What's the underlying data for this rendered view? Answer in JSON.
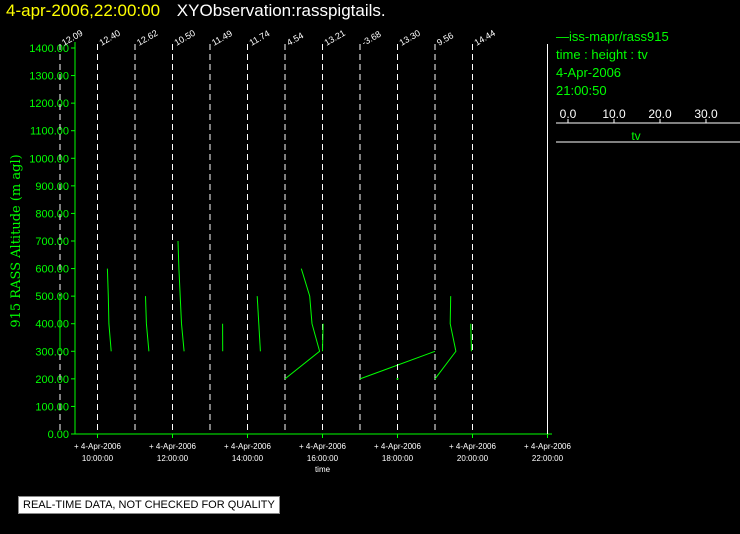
{
  "header": {
    "datetime": "4-apr-2006,22:00:00",
    "observation": "XYObservation:rasspigtails."
  },
  "legend": {
    "line1": "—iss-mapr/rass915",
    "line2": "time : height : tv",
    "line3": "4-Apr-2006",
    "line4": "21:00:50",
    "scale_ticks": [
      "0.0",
      "10.0",
      "20.0",
      "30.0"
    ],
    "scale_label": "tv"
  },
  "footer": {
    "quality_note": "REAL-TIME DATA, NOT CHECKED FOR QUALITY"
  },
  "colors": {
    "data": "#00ff00",
    "axis": "#00ff00",
    "background": "#000000",
    "title_date": "#ffff00"
  },
  "chart_data": {
    "type": "line",
    "ylabel": "915 RASS Altitude (m agl)",
    "xlabel": "time",
    "ylim": [
      0,
      1400
    ],
    "xlim": [
      9,
      22.4
    ],
    "yticks": [
      "0.00",
      "100.00",
      "200.00",
      "300.00",
      "400.00",
      "500.00",
      "600.00",
      "700.00",
      "800.00",
      "900.00",
      "1000.00",
      "1100.00",
      "1200.00",
      "1300.00",
      "1400.00"
    ],
    "xticks": [
      {
        "x": 10,
        "date": "4-Apr-2006",
        "time": "10:00:00"
      },
      {
        "x": 12,
        "date": "4-Apr-2006",
        "time": "12:00:00"
      },
      {
        "x": 14,
        "date": "4-Apr-2006",
        "time": "14:00:00"
      },
      {
        "x": 16,
        "date": "4-Apr-2006",
        "time": "16:00:00"
      },
      {
        "x": 18,
        "date": "4-Apr-2006",
        "time": "18:00:00"
      },
      {
        "x": 20,
        "date": "4-Apr-2006",
        "time": "20:00:00"
      },
      {
        "x": 22,
        "date": "4-Apr-2006",
        "time": "22:00:00"
      }
    ],
    "profiles": [
      {
        "time": 9,
        "label": "12.09",
        "tv_scale": 0.0294,
        "points": [
          [
            0,
            300
          ],
          [
            0,
            400
          ],
          [
            0,
            500
          ]
        ]
      },
      {
        "time": 10,
        "label": "12.40",
        "tv_scale": 0.0294,
        "points": [
          [
            12.4,
            300
          ],
          [
            10.3,
            400
          ],
          [
            9.8,
            500
          ],
          [
            9.0,
            600
          ]
        ]
      },
      {
        "time": 11,
        "label": "12.62",
        "tv_scale": 0.0294,
        "points": [
          [
            12.62,
            300
          ],
          [
            10.3,
            400
          ],
          [
            9.5,
            500
          ]
        ]
      },
      {
        "time": 12,
        "label": "10.50",
        "tv_scale": 0.0294,
        "points": [
          [
            10.5,
            300
          ],
          [
            8.2,
            400
          ],
          [
            5.8,
            600
          ],
          [
            5.0,
            700
          ]
        ]
      },
      {
        "time": 13,
        "label": "11.49",
        "tv_scale": 0.0294,
        "points": [
          [
            11.49,
            300
          ],
          [
            11.4,
            400
          ]
        ]
      },
      {
        "time": 14,
        "label": "11.74",
        "tv_scale": 0.0294,
        "points": [
          [
            11.74,
            300
          ],
          [
            8.8,
            500
          ]
        ]
      },
      {
        "time": 15,
        "label": "4.54",
        "tv_scale": 0.0294,
        "points": [
          [
            0,
            200
          ],
          [
            31.4,
            300
          ],
          [
            24.5,
            400
          ],
          [
            22.4,
            500
          ],
          [
            14.8,
            600
          ]
        ]
      },
      {
        "time": 16,
        "label": "13.21",
        "tv_scale": 0.0294,
        "points": [
          [
            0,
            300
          ],
          [
            0.5,
            400
          ]
        ]
      },
      {
        "time": 17,
        "label": "-3.68",
        "tv_scale": 0.0294,
        "points": [
          [
            0,
            200
          ],
          [
            68,
            300
          ]
        ]
      },
      {
        "time": 18,
        "label": "13.30",
        "tv_scale": 0.0294,
        "points": [
          [
            0,
            200
          ]
        ]
      },
      {
        "time": 19,
        "label": "9.56",
        "tv_scale": 0.0294,
        "points": [
          [
            0,
            200
          ],
          [
            19,
            300
          ],
          [
            13.8,
            400
          ],
          [
            14.2,
            500
          ]
        ]
      },
      {
        "time": 20,
        "label": "14.44",
        "tv_scale": 0.0294,
        "points": [
          [
            -1,
            300
          ],
          [
            -1.5,
            400
          ]
        ]
      }
    ]
  }
}
